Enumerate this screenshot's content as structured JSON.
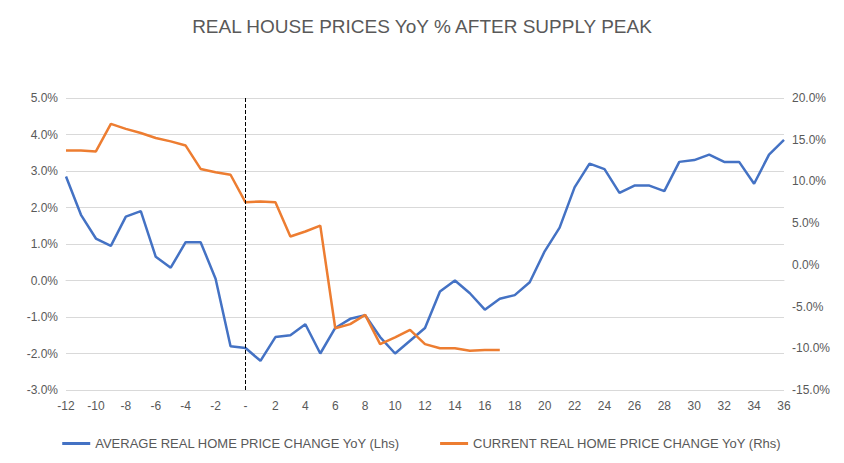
{
  "chart_data": {
    "type": "line",
    "title": "REAL HOUSE PRICES YoY % AFTER SUPPLY PEAK",
    "categories": [
      "-12",
      null,
      "-10",
      null,
      "-8",
      null,
      "-6",
      null,
      "-4",
      null,
      "-2",
      null,
      "-",
      null,
      "2",
      null,
      "4",
      null,
      "6",
      null,
      "8",
      null,
      "10",
      null,
      "12",
      null,
      "14",
      null,
      "16",
      null,
      "18",
      null,
      "20",
      null,
      "22",
      null,
      "24",
      null,
      "26",
      null,
      "28",
      null,
      "30",
      null,
      "32",
      null,
      "34",
      null,
      "36"
    ],
    "vline": "-",
    "series": [
      {
        "name": "AVERAGE REAL HOME PRICE CHANGE YoY (Lhs)",
        "color": "#4472C4",
        "values": [
          2.85,
          1.8,
          1.15,
          0.95,
          1.75,
          1.9,
          0.65,
          0.35,
          1.05,
          1.05,
          0.05,
          -1.8,
          -1.85,
          -2.2,
          -1.55,
          -1.5,
          -1.2,
          -2.0,
          -1.3,
          -1.05,
          -0.95,
          -1.55,
          -2.0,
          -1.65,
          -1.3,
          -0.3,
          0.0,
          -0.35,
          -0.8,
          -0.5,
          -0.4,
          -0.05,
          0.8,
          1.45,
          2.55,
          3.2,
          3.05,
          2.4,
          2.6,
          2.6,
          2.45,
          3.25,
          3.3,
          3.45,
          3.25,
          3.25,
          2.65,
          3.45,
          3.85
        ]
      },
      {
        "name": "CURRENT REAL HOME PRICE CHANGE YoY (Rhs)",
        "color": "#ED7D31",
        "axis": "y2",
        "values": [
          13.7,
          13.7,
          13.6,
          16.9,
          16.3,
          15.8,
          15.2,
          14.8,
          14.3,
          11.5,
          11.1,
          10.8,
          7.5,
          7.6,
          7.5,
          3.4,
          4.0,
          4.7,
          -7.6,
          -7.1,
          -6.0,
          -9.5,
          -8.7,
          -7.8,
          -9.5,
          -10.0,
          -10.0,
          -10.3,
          -10.2,
          -10.2,
          null,
          null,
          null,
          null,
          null,
          null,
          null,
          null,
          null,
          null,
          null,
          null,
          null,
          null,
          null,
          null,
          null,
          null,
          null
        ]
      }
    ],
    "ylim": [
      -3,
      5
    ],
    "yticks": [
      {
        "value": -3,
        "label": "-3.0%"
      },
      {
        "value": -2,
        "label": "-2.0%"
      },
      {
        "value": -1,
        "label": "-1.0%"
      },
      {
        "value": 0,
        "label": "0.0%"
      },
      {
        "value": 1,
        "label": "1.0%"
      },
      {
        "value": 2,
        "label": "2.0%"
      },
      {
        "value": 3,
        "label": "3.0%"
      },
      {
        "value": 4,
        "label": "4.0%"
      },
      {
        "value": 5,
        "label": "5.0%"
      }
    ],
    "y2lim": [
      -15,
      20
    ],
    "y2ticks": [
      {
        "value": -15,
        "label": "-15.0%"
      },
      {
        "value": -10,
        "label": "-10.0%"
      },
      {
        "value": -5,
        "label": "-5.0%"
      },
      {
        "value": 0,
        "label": "0.0%"
      },
      {
        "value": 5,
        "label": "5.0%"
      },
      {
        "value": 10,
        "label": "10.0%"
      },
      {
        "value": 15,
        "label": "15.0%"
      },
      {
        "value": 20,
        "label": "20.0%"
      }
    ],
    "grid": true,
    "legend": "bottom"
  }
}
